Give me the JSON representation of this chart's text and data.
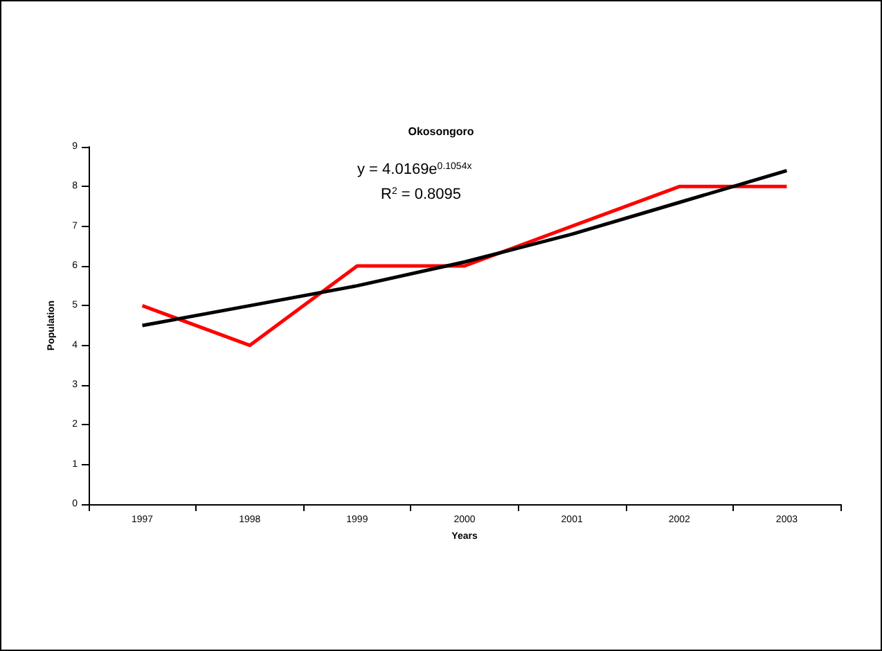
{
  "chart_data": {
    "type": "line",
    "title": "Okosongoro",
    "xlabel": "Years",
    "ylabel": "Population",
    "categories": [
      "1997",
      "1998",
      "1999",
      "2000",
      "2001",
      "2002",
      "2003"
    ],
    "series": [
      {
        "color": "#ff0000",
        "values": [
          5,
          4,
          6,
          6,
          7,
          8,
          8
        ]
      },
      {
        "color": "#000000",
        "values": [
          4.5,
          5.0,
          5.5,
          6.1,
          6.8,
          7.6,
          8.4
        ]
      }
    ],
    "ylim": [
      0,
      9
    ],
    "yticks": [
      0,
      1,
      2,
      3,
      4,
      5,
      6,
      7,
      8,
      9
    ],
    "marker": "none",
    "annotations": [
      "y = 4.0169e$^{0.1054x}$",
      "R$^{2}$ = 0.8095"
    ]
  }
}
